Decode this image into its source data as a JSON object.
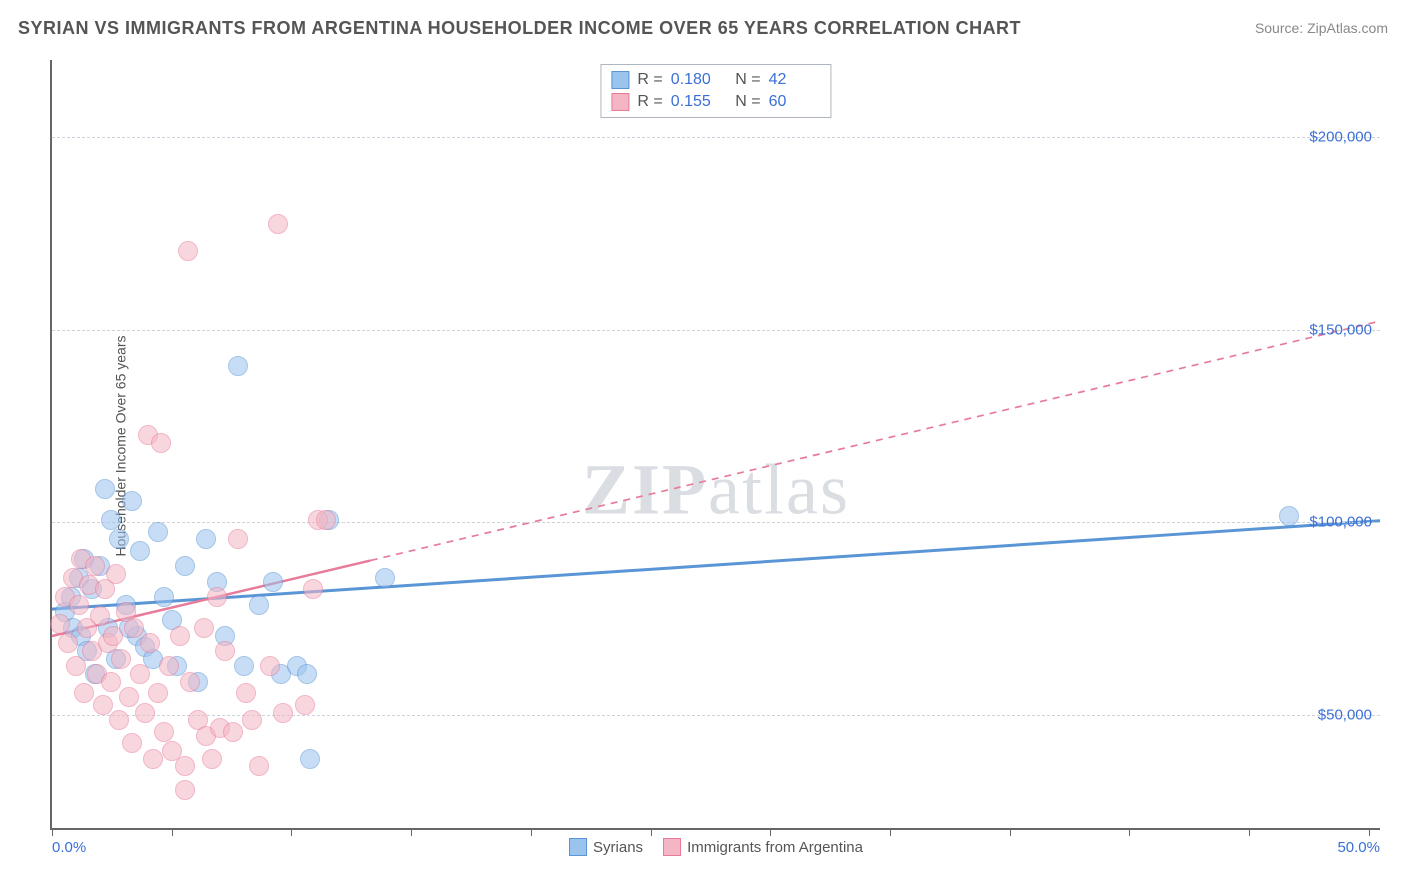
{
  "title": "SYRIAN VS IMMIGRANTS FROM ARGENTINA HOUSEHOLDER INCOME OVER 65 YEARS CORRELATION CHART",
  "source": "Source: ZipAtlas.com",
  "watermark": "ZIPatlas",
  "chart": {
    "type": "scatter",
    "ylabel": "Householder Income Over 65 years",
    "background_color": "#ffffff",
    "grid_color": "#cdd3da",
    "axis_color": "#666666",
    "label_color": "#555555",
    "tick_label_color": "#3b6fd6",
    "label_fontsize": 14,
    "tick_fontsize": 15,
    "xlim": [
      0,
      50
    ],
    "ylim": [
      20000,
      220000
    ],
    "x_tick_positions": [
      0,
      4.5,
      9,
      13.5,
      18,
      22.5,
      27,
      31.5,
      36,
      40.5,
      45,
      49.5
    ],
    "x_label_min": "0.0%",
    "x_label_max": "50.0%",
    "y_ticks": [
      50000,
      100000,
      150000,
      200000
    ],
    "y_tick_labels": [
      "$50,000",
      "$100,000",
      "$150,000",
      "$200,000"
    ],
    "point_radius": 10,
    "point_opacity": 0.55,
    "series": [
      {
        "key": "syrians",
        "label": "Syrians",
        "color_fill": "#9ac3ee",
        "color_stroke": "#5a95d6",
        "R": "0.180",
        "N": "42",
        "trend": {
          "x1": 0,
          "y1": 77000,
          "x2": 50,
          "y2": 100000,
          "extrapolate_from_x": null,
          "stroke_width": 3,
          "dash": null
        },
        "points": [
          [
            0.5,
            76000
          ],
          [
            0.7,
            80000
          ],
          [
            0.8,
            72000
          ],
          [
            1.0,
            85000
          ],
          [
            1.1,
            70000
          ],
          [
            1.2,
            90000
          ],
          [
            1.3,
            66000
          ],
          [
            1.5,
            82000
          ],
          [
            1.6,
            60000
          ],
          [
            1.8,
            88000
          ],
          [
            2.0,
            108000
          ],
          [
            2.1,
            72000
          ],
          [
            2.2,
            100000
          ],
          [
            2.4,
            64000
          ],
          [
            2.5,
            95000
          ],
          [
            2.8,
            78000
          ],
          [
            3.0,
            105000
          ],
          [
            3.2,
            70000
          ],
          [
            3.3,
            92000
          ],
          [
            3.5,
            67000
          ],
          [
            3.8,
            64000
          ],
          [
            4.0,
            97000
          ],
          [
            4.2,
            80000
          ],
          [
            4.5,
            74000
          ],
          [
            4.7,
            62000
          ],
          [
            5.0,
            88000
          ],
          [
            5.5,
            58000
          ],
          [
            5.8,
            95000
          ],
          [
            6.2,
            84000
          ],
          [
            6.5,
            70000
          ],
          [
            7.0,
            140000
          ],
          [
            7.2,
            62000
          ],
          [
            7.8,
            78000
          ],
          [
            8.3,
            84000
          ],
          [
            8.6,
            60000
          ],
          [
            9.2,
            62000
          ],
          [
            9.6,
            60000
          ],
          [
            9.7,
            38000
          ],
          [
            10.4,
            100000
          ],
          [
            12.5,
            85000
          ],
          [
            46.5,
            101000
          ],
          [
            2.9,
            72000
          ]
        ]
      },
      {
        "key": "argentina",
        "label": "Immigrants from Argentina",
        "color_fill": "#f4b6c4",
        "color_stroke": "#e87b9a",
        "R": "0.155",
        "N": "60",
        "trend": {
          "x1": 0,
          "y1": 70000,
          "x2": 50,
          "y2": 152000,
          "extrapolate_from_x": 12,
          "stroke_width": 2.5,
          "dash": "7,6"
        },
        "points": [
          [
            0.3,
            73000
          ],
          [
            0.5,
            80000
          ],
          [
            0.6,
            68000
          ],
          [
            0.8,
            85000
          ],
          [
            0.9,
            62000
          ],
          [
            1.0,
            78000
          ],
          [
            1.1,
            90000
          ],
          [
            1.2,
            55000
          ],
          [
            1.3,
            72000
          ],
          [
            1.4,
            83000
          ],
          [
            1.5,
            66000
          ],
          [
            1.6,
            88000
          ],
          [
            1.7,
            60000
          ],
          [
            1.8,
            75000
          ],
          [
            1.9,
            52000
          ],
          [
            2.0,
            82000
          ],
          [
            2.1,
            68000
          ],
          [
            2.2,
            58000
          ],
          [
            2.3,
            70000
          ],
          [
            2.4,
            86000
          ],
          [
            2.5,
            48000
          ],
          [
            2.6,
            64000
          ],
          [
            2.8,
            76000
          ],
          [
            2.9,
            54000
          ],
          [
            3.0,
            42000
          ],
          [
            3.1,
            72000
          ],
          [
            3.3,
            60000
          ],
          [
            3.5,
            50000
          ],
          [
            3.6,
            122000
          ],
          [
            3.7,
            68000
          ],
          [
            3.8,
            38000
          ],
          [
            4.0,
            55000
          ],
          [
            4.1,
            120000
          ],
          [
            4.2,
            45000
          ],
          [
            4.4,
            62000
          ],
          [
            4.5,
            40000
          ],
          [
            4.8,
            70000
          ],
          [
            5.0,
            36000
          ],
          [
            5.1,
            170000
          ],
          [
            5.2,
            58000
          ],
          [
            5.5,
            48000
          ],
          [
            5.7,
            72000
          ],
          [
            5.8,
            44000
          ],
          [
            6.0,
            38000
          ],
          [
            6.2,
            80000
          ],
          [
            6.3,
            46000
          ],
          [
            6.5,
            66000
          ],
          [
            6.8,
            45000
          ],
          [
            7.0,
            95000
          ],
          [
            7.3,
            55000
          ],
          [
            7.5,
            48000
          ],
          [
            7.8,
            36000
          ],
          [
            8.2,
            62000
          ],
          [
            8.5,
            177000
          ],
          [
            8.7,
            50000
          ],
          [
            9.5,
            52000
          ],
          [
            9.8,
            82000
          ],
          [
            10.0,
            100000
          ],
          [
            10.3,
            100000
          ],
          [
            5.0,
            30000
          ]
        ]
      }
    ],
    "stats_box": {
      "border_color": "#b0b6bf",
      "fontsize": 16
    }
  }
}
